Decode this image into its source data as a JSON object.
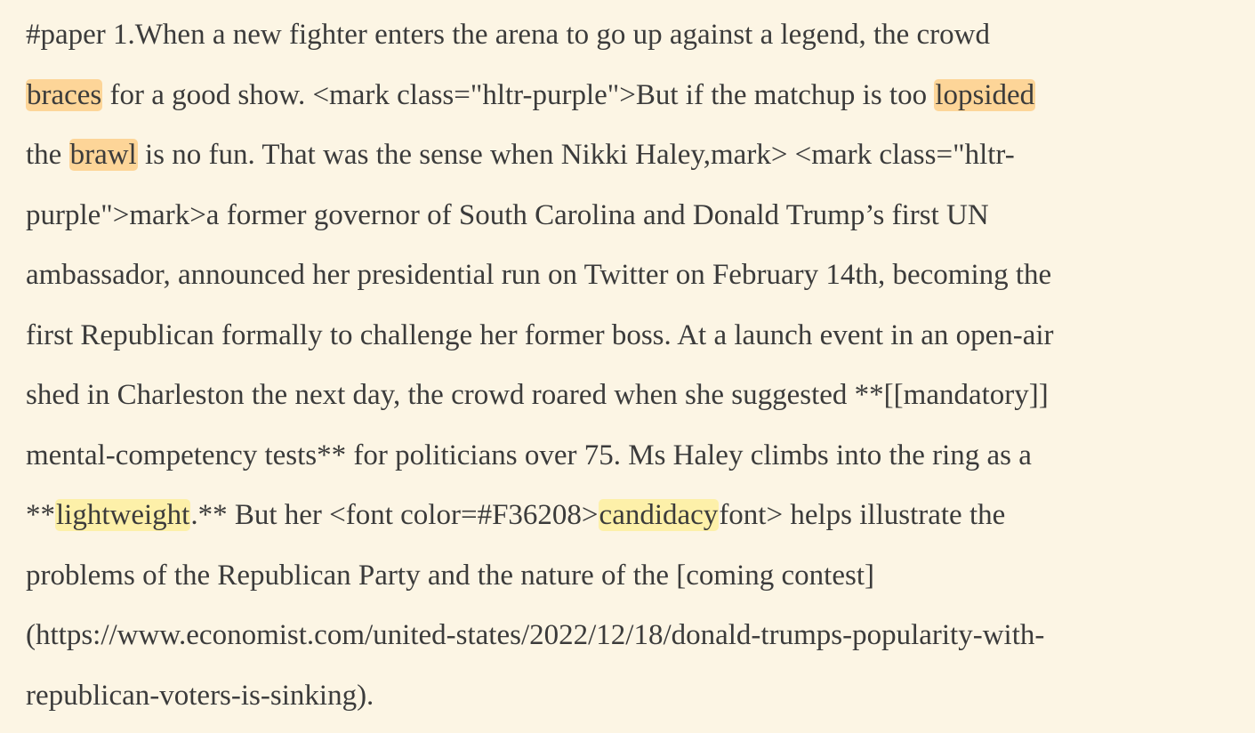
{
  "article": {
    "lines": [
      [
        {
          "text": "#paper 1.When a new fighter enters the arena to go up against a legend, the crowd"
        }
      ],
      [
        {
          "text": "braces",
          "highlight": "orange"
        },
        {
          "text": " for a good show. <mark class=\"hltr-purple\">But if the matchup is too "
        },
        {
          "text": "lopsided",
          "highlight": "orange"
        }
      ],
      [
        {
          "text": "the "
        },
        {
          "text": "brawl",
          "highlight": "orange"
        },
        {
          "text": " is no fun. That was the sense when Nikki Haley,mark> <mark class=\"hltr-"
        }
      ],
      [
        {
          "text": "purple\">mark>a former governor of South Carolina and Donald Trump’s first UN"
        }
      ],
      [
        {
          "text": "ambassador, announced her presidential run on Twitter on February 14th, becoming the"
        }
      ],
      [
        {
          "text": "first Republican formally to challenge her former boss. At a launch event in an open-air"
        }
      ],
      [
        {
          "text": "shed in Charleston the next day, the crowd roared when she suggested **[[mandatory]]"
        }
      ],
      [
        {
          "text": "mental-competency tests** for politicians over 75. Ms Haley climbs into the ring as a"
        }
      ],
      [
        {
          "text": "**"
        },
        {
          "text": "lightweight",
          "highlight": "yellow"
        },
        {
          "text": ".** But her <font color=#F36208>"
        },
        {
          "text": "candidacy",
          "highlight": "yellow"
        },
        {
          "text": "font> helps illustrate the"
        }
      ],
      [
        {
          "text": "problems of the Republican Party and the nature of the [coming contest]"
        }
      ],
      [
        {
          "text": "(https://www.economist.com/united-states/2022/12/18/donald-trumps-popularity-with-"
        }
      ],
      [
        {
          "text": "republican-voters-is-sinking)."
        }
      ]
    ]
  }
}
